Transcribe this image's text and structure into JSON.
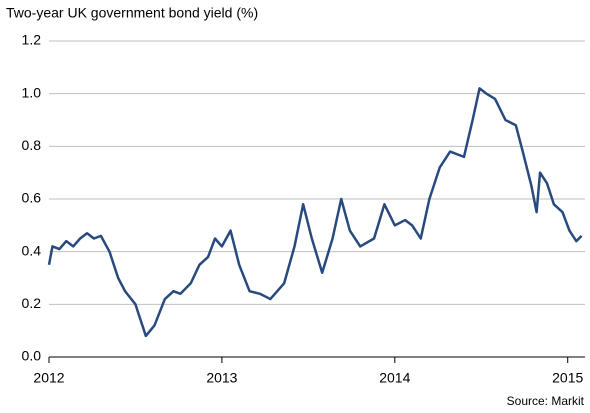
{
  "chart_data": {
    "type": "line",
    "title": "Two-year UK government bond yield (%)",
    "source": "Source: Markit",
    "x": [
      2012.0,
      2012.02,
      2012.06,
      2012.1,
      2012.14,
      2012.18,
      2012.22,
      2012.26,
      2012.3,
      2012.35,
      2012.4,
      2012.44,
      2012.5,
      2012.53,
      2012.56,
      2012.61,
      2012.67,
      2012.72,
      2012.76,
      2012.82,
      2012.87,
      2012.92,
      2012.96,
      2013.0,
      2013.05,
      2013.1,
      2013.16,
      2013.22,
      2013.28,
      2013.36,
      2013.42,
      2013.47,
      2013.52,
      2013.58,
      2013.64,
      2013.69,
      2013.74,
      2013.8,
      2013.88,
      2013.94,
      2014.0,
      2014.06,
      2014.1,
      2014.15,
      2014.2,
      2014.26,
      2014.32,
      2014.4,
      2014.45,
      2014.49,
      2014.53,
      2014.58,
      2014.64,
      2014.7,
      2014.74,
      2014.79,
      2014.82,
      2014.84,
      2014.88,
      2014.92,
      2014.97,
      2015.01,
      2015.05,
      2015.08
    ],
    "series": [
      {
        "name": "Two-year UK government bond yield",
        "color": "#284a7e",
        "values": [
          0.35,
          0.42,
          0.41,
          0.44,
          0.42,
          0.45,
          0.47,
          0.45,
          0.46,
          0.4,
          0.3,
          0.25,
          0.2,
          0.14,
          0.08,
          0.12,
          0.22,
          0.25,
          0.24,
          0.28,
          0.35,
          0.38,
          0.45,
          0.42,
          0.48,
          0.35,
          0.25,
          0.24,
          0.22,
          0.28,
          0.42,
          0.58,
          0.45,
          0.32,
          0.45,
          0.6,
          0.48,
          0.42,
          0.45,
          0.58,
          0.5,
          0.52,
          0.5,
          0.45,
          0.6,
          0.72,
          0.78,
          0.76,
          0.9,
          1.02,
          1.0,
          0.98,
          0.9,
          0.88,
          0.78,
          0.65,
          0.55,
          0.7,
          0.66,
          0.58,
          0.55,
          0.48,
          0.44,
          0.46
        ]
      }
    ],
    "xlim": [
      2012,
      2015.1
    ],
    "xticks": [
      2012,
      2013,
      2014,
      2015
    ],
    "ylim": [
      0,
      1.2
    ],
    "yticks": [
      {
        "value": 0,
        "label": "0.0"
      },
      0.2,
      0.4,
      0.6,
      0.8,
      {
        "value": 1,
        "label": "1.0"
      },
      1.2
    ],
    "grid": true
  }
}
